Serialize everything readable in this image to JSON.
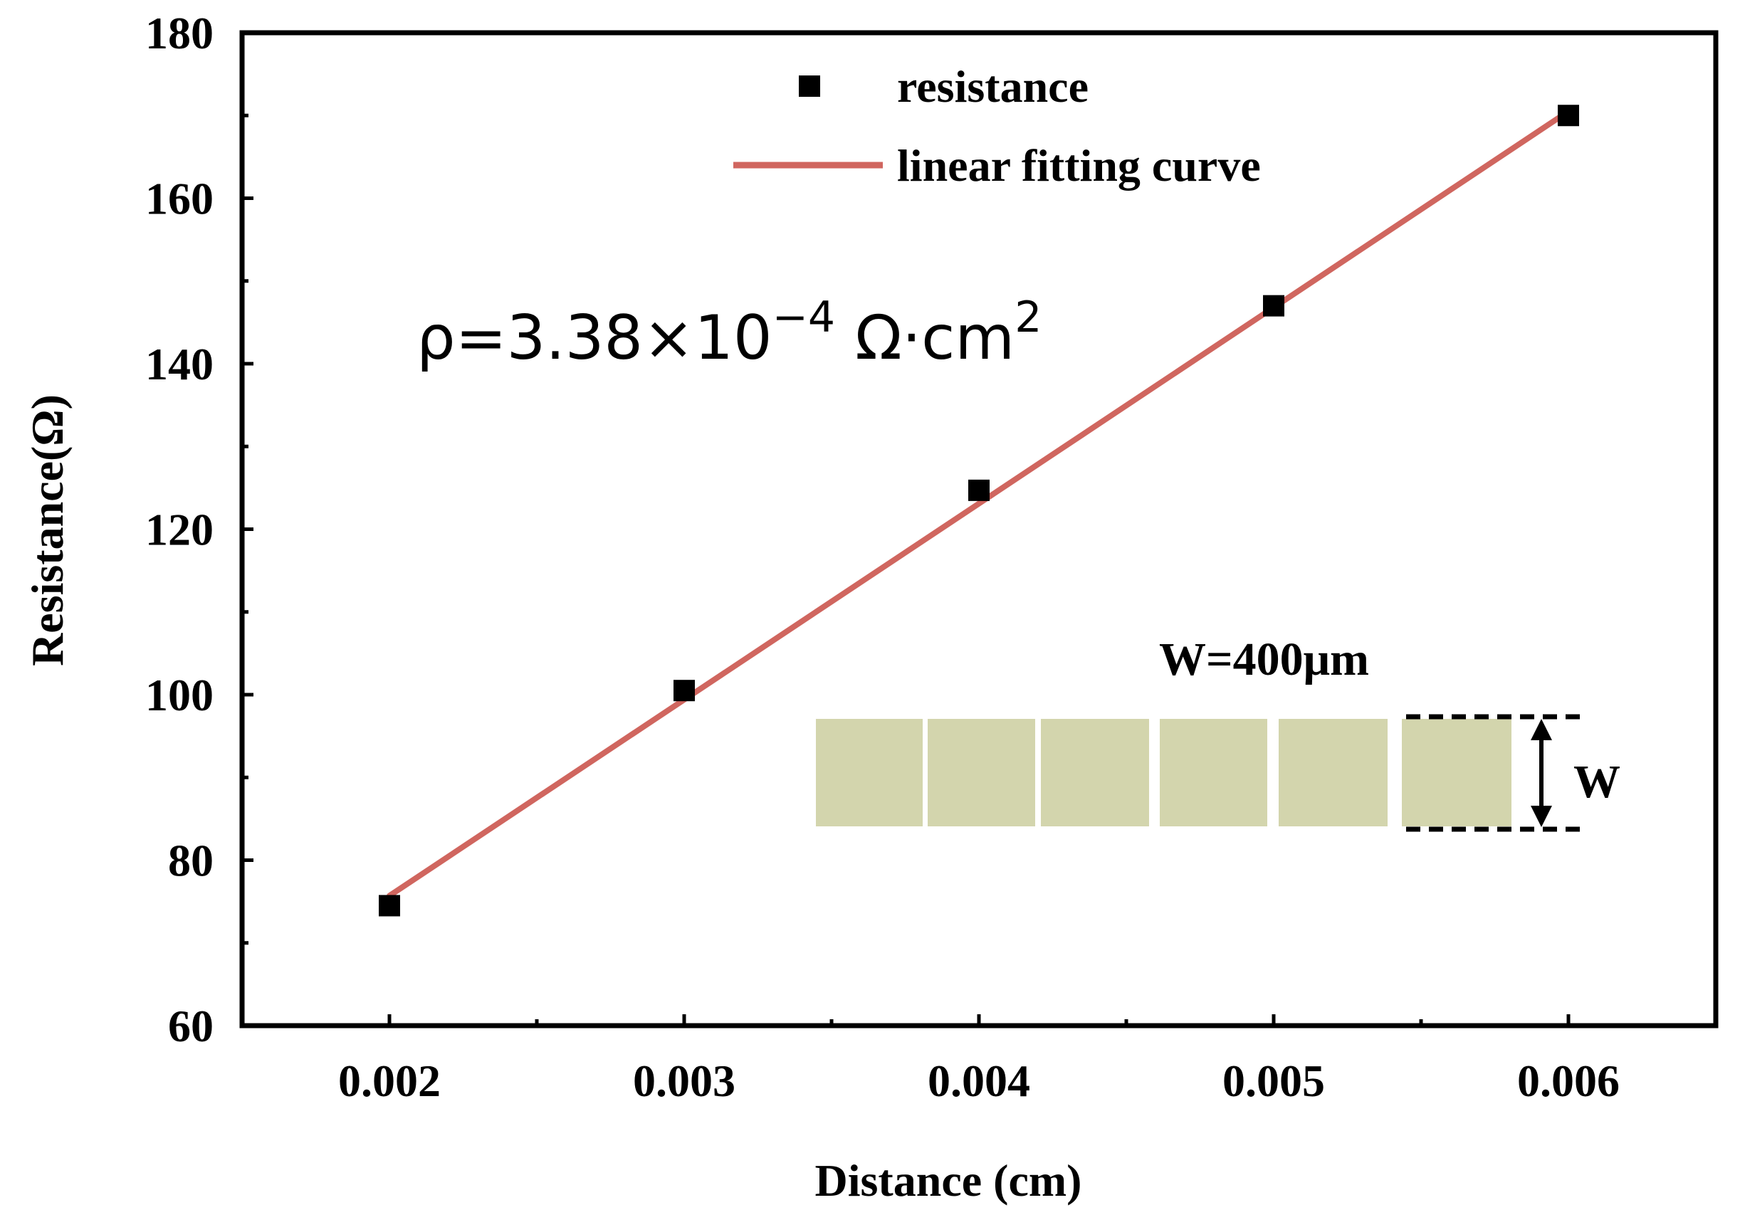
{
  "chart_data": {
    "type": "scatter",
    "xlabel": "Distance (cm)",
    "ylabel": "Resistance(Ω)",
    "xlim": [
      0.0015,
      0.0065
    ],
    "ylim": [
      60,
      180
    ],
    "x_ticks": [
      0.002,
      0.003,
      0.004,
      0.005,
      0.006
    ],
    "x_tick_labels": [
      "0.002",
      "0.003",
      "0.004",
      "0.005",
      "0.006"
    ],
    "y_ticks": [
      60,
      80,
      100,
      120,
      140,
      160,
      180
    ],
    "y_tick_labels": [
      "60",
      "80",
      "100",
      "120",
      "140",
      "160",
      "180"
    ],
    "series": [
      {
        "name": "resistance",
        "kind": "scatter",
        "marker": "square",
        "color": "#000000",
        "x": [
          0.002,
          0.003,
          0.004,
          0.005,
          0.006
        ],
        "y": [
          74.5,
          100.5,
          124.7,
          147.0,
          170.0
        ]
      },
      {
        "name": "linear fitting curve",
        "kind": "line",
        "color": "#d0665f",
        "x": [
          0.002,
          0.006
        ],
        "y": [
          75.7,
          170.5
        ]
      }
    ],
    "legend": {
      "position": "top-center",
      "entries": [
        "resistance",
        "linear fitting curve"
      ]
    },
    "annotations": {
      "rho_main": "ρ=3.38×10",
      "rho_exponent": "−4",
      "rho_unit": "Ω·cm",
      "rho_unit_exponent": "2",
      "inset_label": "W=400μm",
      "inset_dimension": "W",
      "pad_color": "#d3d5ad"
    }
  }
}
